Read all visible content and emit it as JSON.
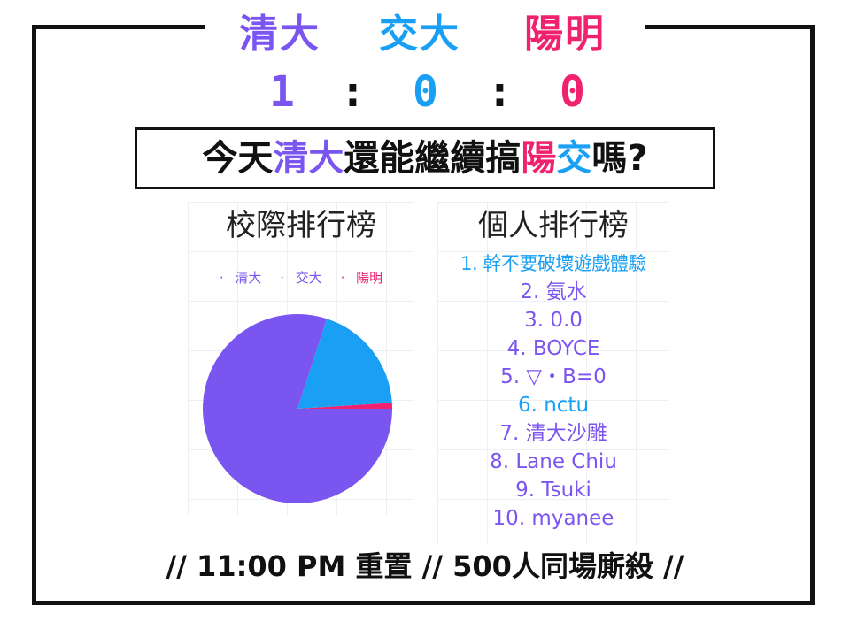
{
  "header": {
    "teams": [
      {
        "name": "清大",
        "color": "#7b55ef"
      },
      {
        "name": "交大",
        "color": "#19a0f5"
      },
      {
        "name": "陽明",
        "color": "#f0226e"
      }
    ],
    "scores": [
      "1",
      "0",
      "0"
    ],
    "separator": ":"
  },
  "question": {
    "prefix": "今天",
    "school1": "清大",
    "middle": "還能繼續搞",
    "school2a": "陽",
    "school2b": "交",
    "suffix": "嗎?"
  },
  "school_ranking": {
    "title": "校際排行榜",
    "legend_marker": "·",
    "legend": [
      "清大",
      "交大",
      "陽明"
    ]
  },
  "personal_ranking": {
    "title": "個人排行榜",
    "items": [
      "1. 幹不要破壞遊戲體驗",
      "2. 氨水",
      "3. 0.0",
      "4. BOYCE",
      "5. ▽・B=0",
      "6. nctu",
      "7. 清大沙雕",
      "8. Lane Chiu",
      "9. Tsuki",
      "10. myanee"
    ],
    "highlight_blue": [
      0,
      5
    ]
  },
  "footer": {
    "text": "// 11:00 PM 重置 // 500人同場廝殺 //"
  },
  "chart_data": {
    "type": "pie",
    "categories": [
      "清大",
      "交大",
      "陽明"
    ],
    "values": [
      80,
      19,
      1
    ],
    "colors": [
      "#7b55ef",
      "#19a0f5",
      "#f0226e"
    ],
    "legend_position": "top"
  }
}
